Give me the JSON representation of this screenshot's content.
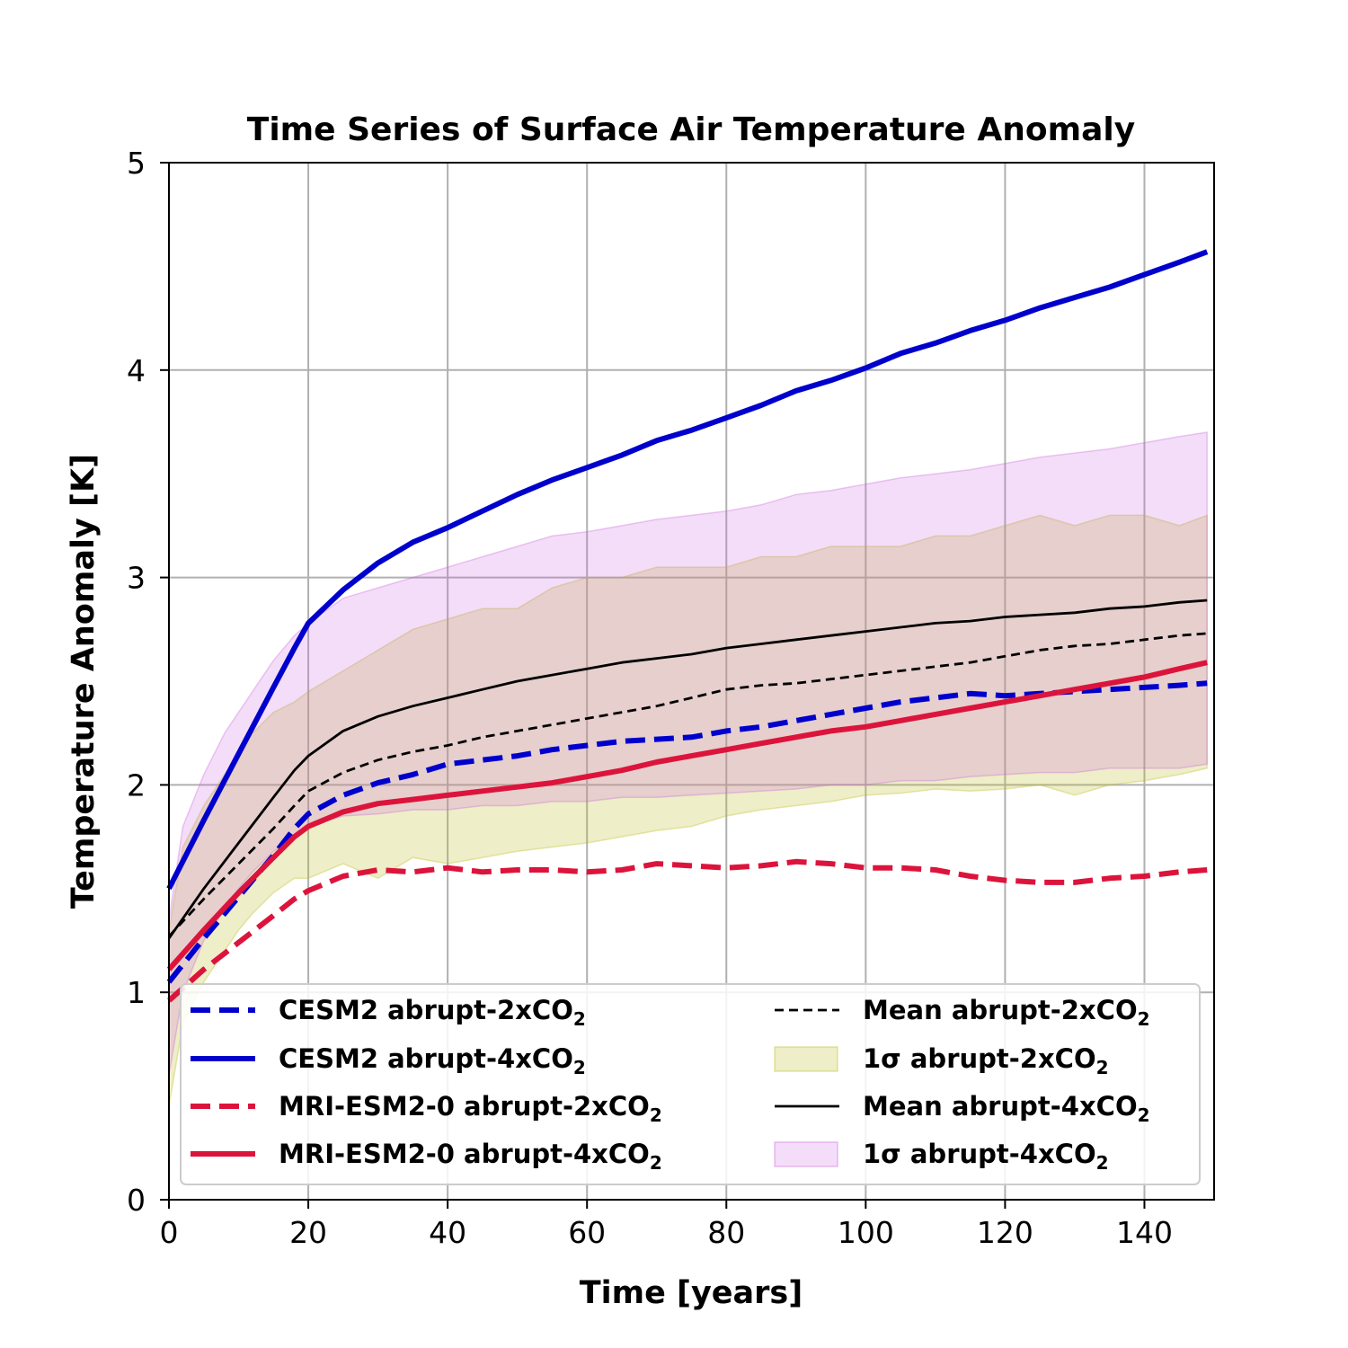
{
  "chart_data": {
    "type": "line",
    "title": "Time Series of Surface Air Temperature Anomaly",
    "xlabel": "Time [years]",
    "ylabel": "Temperature Anomaly [K]",
    "xlim": [
      0,
      150
    ],
    "ylim": [
      0,
      5
    ],
    "xticks": [
      0,
      20,
      40,
      60,
      80,
      100,
      120,
      140
    ],
    "yticks": [
      0,
      1,
      2,
      3,
      4,
      5
    ],
    "grid": true,
    "legend_position": "lower-center",
    "series": [
      {
        "name": "CESM2 abrupt-2xCO",
        "subscript": "2",
        "color": "#0000cd",
        "style": "dashed",
        "x": [
          0,
          5,
          10,
          15,
          18,
          20,
          25,
          30,
          35,
          40,
          45,
          50,
          55,
          60,
          65,
          70,
          75,
          80,
          85,
          90,
          95,
          100,
          105,
          110,
          115,
          120,
          125,
          130,
          135,
          140,
          145,
          149
        ],
        "y": [
          1.05,
          1.26,
          1.46,
          1.66,
          1.79,
          1.86,
          1.95,
          2.01,
          2.05,
          2.1,
          2.12,
          2.14,
          2.17,
          2.19,
          2.21,
          2.22,
          2.23,
          2.26,
          2.28,
          2.31,
          2.34,
          2.37,
          2.4,
          2.42,
          2.44,
          2.43,
          2.44,
          2.45,
          2.46,
          2.47,
          2.48,
          2.49
        ]
      },
      {
        "name": "CESM2 abrupt-4xCO",
        "subscript": "2",
        "color": "#0000cd",
        "style": "solid",
        "x": [
          0,
          5,
          10,
          15,
          18,
          20,
          25,
          30,
          35,
          40,
          45,
          50,
          55,
          60,
          65,
          70,
          75,
          80,
          85,
          90,
          95,
          100,
          105,
          110,
          115,
          120,
          125,
          130,
          135,
          140,
          145,
          149
        ],
        "y": [
          1.5,
          1.83,
          2.15,
          2.47,
          2.66,
          2.78,
          2.94,
          3.07,
          3.17,
          3.24,
          3.32,
          3.4,
          3.47,
          3.53,
          3.59,
          3.66,
          3.71,
          3.77,
          3.83,
          3.9,
          3.95,
          4.01,
          4.08,
          4.13,
          4.19,
          4.24,
          4.3,
          4.35,
          4.4,
          4.46,
          4.52,
          4.57
        ]
      },
      {
        "name": "MRI-ESM2-0 abrupt-2xCO",
        "subscript": "2",
        "color": "#dc143c",
        "style": "dashed",
        "x": [
          0,
          5,
          10,
          15,
          18,
          20,
          25,
          30,
          35,
          40,
          45,
          50,
          55,
          60,
          65,
          70,
          75,
          80,
          85,
          90,
          95,
          100,
          105,
          110,
          115,
          120,
          125,
          130,
          135,
          140,
          145,
          149
        ],
        "y": [
          0.96,
          1.11,
          1.24,
          1.37,
          1.45,
          1.49,
          1.56,
          1.59,
          1.58,
          1.6,
          1.58,
          1.59,
          1.59,
          1.58,
          1.59,
          1.62,
          1.61,
          1.6,
          1.61,
          1.63,
          1.62,
          1.6,
          1.6,
          1.59,
          1.56,
          1.54,
          1.53,
          1.53,
          1.55,
          1.56,
          1.58,
          1.59
        ]
      },
      {
        "name": "MRI-ESM2-0 abrupt-4xCO",
        "subscript": "2",
        "color": "#dc143c",
        "style": "solid",
        "x": [
          0,
          5,
          10,
          15,
          18,
          20,
          25,
          30,
          35,
          40,
          45,
          50,
          55,
          60,
          65,
          70,
          75,
          80,
          85,
          90,
          95,
          100,
          105,
          110,
          115,
          120,
          125,
          130,
          135,
          140,
          145,
          149
        ],
        "y": [
          1.11,
          1.3,
          1.48,
          1.65,
          1.75,
          1.8,
          1.87,
          1.91,
          1.93,
          1.95,
          1.97,
          1.99,
          2.01,
          2.04,
          2.07,
          2.11,
          2.14,
          2.17,
          2.2,
          2.23,
          2.26,
          2.28,
          2.31,
          2.34,
          2.37,
          2.4,
          2.43,
          2.46,
          2.49,
          2.52,
          2.56,
          2.59
        ]
      },
      {
        "name": "Mean abrupt-2xCO",
        "subscript": "2",
        "color": "#000000",
        "style": "dashed-thin",
        "x": [
          0,
          5,
          10,
          15,
          18,
          20,
          25,
          30,
          35,
          40,
          45,
          50,
          55,
          60,
          65,
          70,
          75,
          80,
          85,
          90,
          95,
          100,
          105,
          110,
          115,
          120,
          125,
          130,
          135,
          140,
          145,
          149
        ],
        "y": [
          1.27,
          1.45,
          1.62,
          1.79,
          1.9,
          1.97,
          2.06,
          2.12,
          2.16,
          2.19,
          2.23,
          2.26,
          2.29,
          2.32,
          2.35,
          2.38,
          2.42,
          2.46,
          2.48,
          2.49,
          2.51,
          2.53,
          2.55,
          2.57,
          2.59,
          2.62,
          2.65,
          2.67,
          2.68,
          2.7,
          2.72,
          2.73
        ]
      },
      {
        "name": "Mean abrupt-4xCO",
        "subscript": "2",
        "color": "#000000",
        "style": "solid-thin",
        "x": [
          0,
          5,
          10,
          15,
          18,
          20,
          25,
          30,
          35,
          40,
          45,
          50,
          55,
          60,
          65,
          70,
          75,
          80,
          85,
          90,
          95,
          100,
          105,
          110,
          115,
          120,
          125,
          130,
          135,
          140,
          145,
          149
        ],
        "y": [
          1.26,
          1.5,
          1.72,
          1.94,
          2.07,
          2.14,
          2.26,
          2.33,
          2.38,
          2.42,
          2.46,
          2.5,
          2.53,
          2.56,
          2.59,
          2.61,
          2.63,
          2.66,
          2.68,
          2.7,
          2.72,
          2.74,
          2.76,
          2.78,
          2.79,
          2.81,
          2.82,
          2.83,
          2.85,
          2.86,
          2.88,
          2.89
        ]
      }
    ],
    "bands": [
      {
        "name": "1σ abrupt-2xCO",
        "subscript": "2",
        "color": "#bcbd22",
        "opacity": 0.25,
        "x": [
          0,
          2,
          5,
          8,
          10,
          12,
          15,
          18,
          20,
          25,
          30,
          35,
          40,
          45,
          50,
          55,
          60,
          65,
          70,
          75,
          80,
          85,
          90,
          95,
          100,
          105,
          110,
          115,
          120,
          125,
          130,
          135,
          140,
          145,
          149
        ],
        "lower": [
          0.45,
          0.85,
          1.05,
          1.2,
          1.3,
          1.38,
          1.48,
          1.55,
          1.55,
          1.62,
          1.55,
          1.65,
          1.62,
          1.65,
          1.68,
          1.7,
          1.72,
          1.75,
          1.78,
          1.8,
          1.85,
          1.88,
          1.9,
          1.92,
          1.95,
          1.96,
          1.98,
          1.97,
          1.98,
          2.0,
          1.95,
          2.0,
          2.02,
          2.05,
          2.08
        ],
        "upper": [
          1.3,
          1.7,
          1.9,
          2.05,
          2.15,
          2.25,
          2.35,
          2.4,
          2.45,
          2.55,
          2.65,
          2.75,
          2.8,
          2.85,
          2.85,
          2.95,
          3.0,
          3.0,
          3.05,
          3.05,
          3.05,
          3.1,
          3.1,
          3.15,
          3.15,
          3.15,
          3.2,
          3.2,
          3.25,
          3.3,
          3.25,
          3.3,
          3.3,
          3.25,
          3.3
        ]
      },
      {
        "name": "1σ abrupt-4xCO",
        "subscript": "2",
        "color": "#cc66dd",
        "opacity": 0.22,
        "x": [
          0,
          2,
          5,
          8,
          10,
          12,
          15,
          18,
          20,
          25,
          30,
          35,
          40,
          45,
          50,
          55,
          60,
          65,
          70,
          75,
          80,
          85,
          90,
          95,
          100,
          105,
          110,
          115,
          120,
          125,
          130,
          135,
          140,
          145,
          149
        ],
        "lower": [
          0.6,
          1.0,
          1.25,
          1.4,
          1.5,
          1.58,
          1.68,
          1.75,
          1.8,
          1.85,
          1.86,
          1.88,
          1.88,
          1.9,
          1.9,
          1.92,
          1.92,
          1.94,
          1.94,
          1.95,
          1.96,
          1.97,
          1.98,
          2.0,
          2.0,
          2.02,
          2.02,
          2.04,
          2.05,
          2.06,
          2.06,
          2.08,
          2.08,
          2.08,
          2.1
        ],
        "upper": [
          1.35,
          1.8,
          2.05,
          2.25,
          2.35,
          2.45,
          2.6,
          2.72,
          2.78,
          2.9,
          2.95,
          3.0,
          3.05,
          3.1,
          3.15,
          3.2,
          3.22,
          3.25,
          3.28,
          3.3,
          3.32,
          3.35,
          3.4,
          3.42,
          3.45,
          3.48,
          3.5,
          3.52,
          3.55,
          3.58,
          3.6,
          3.62,
          3.65,
          3.68,
          3.7
        ]
      }
    ]
  }
}
